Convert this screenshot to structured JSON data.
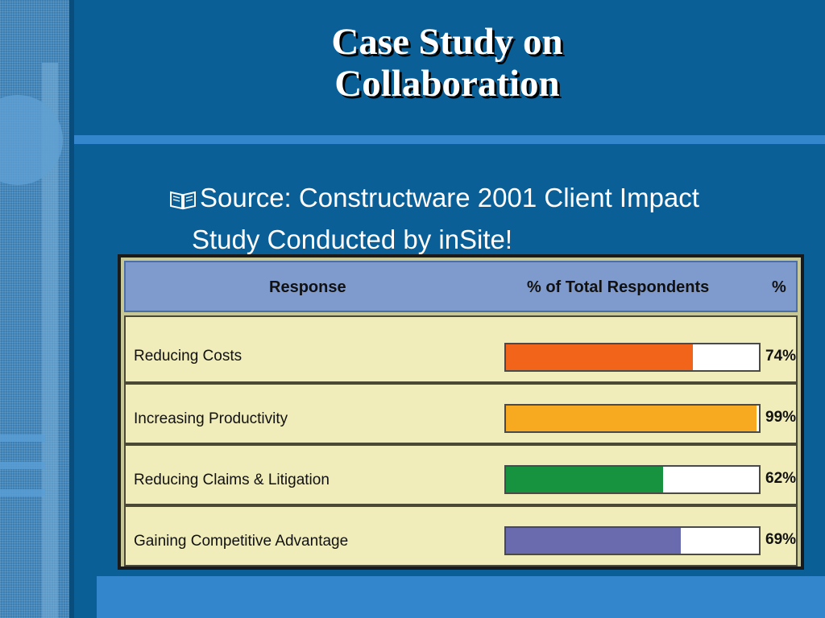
{
  "slide": {
    "title_line1": "Case Study on",
    "title_line2": "Collaboration",
    "bullet_line1": "Source: Constructware 2001 Client Impact",
    "bullet_line2": "Study Conducted by inSite!",
    "bullet_icon": "open-book-icon"
  },
  "chart_data": {
    "type": "bar",
    "orientation": "horizontal",
    "headers": [
      "Response",
      "% of Total Respondents",
      "%"
    ],
    "categories": [
      "Reducing Costs",
      "Increasing Productivity",
      "Reducing Claims & Litigation",
      "Gaining Competitive Advantage"
    ],
    "values": [
      74,
      99,
      62,
      69
    ],
    "value_labels": [
      "74%",
      "99%",
      "62%",
      "69%"
    ],
    "colors": [
      "#f26419",
      "#f7aa1f",
      "#17933f",
      "#6a6aaf"
    ],
    "xlim": [
      0,
      100
    ],
    "grid": false,
    "legend": "none"
  }
}
